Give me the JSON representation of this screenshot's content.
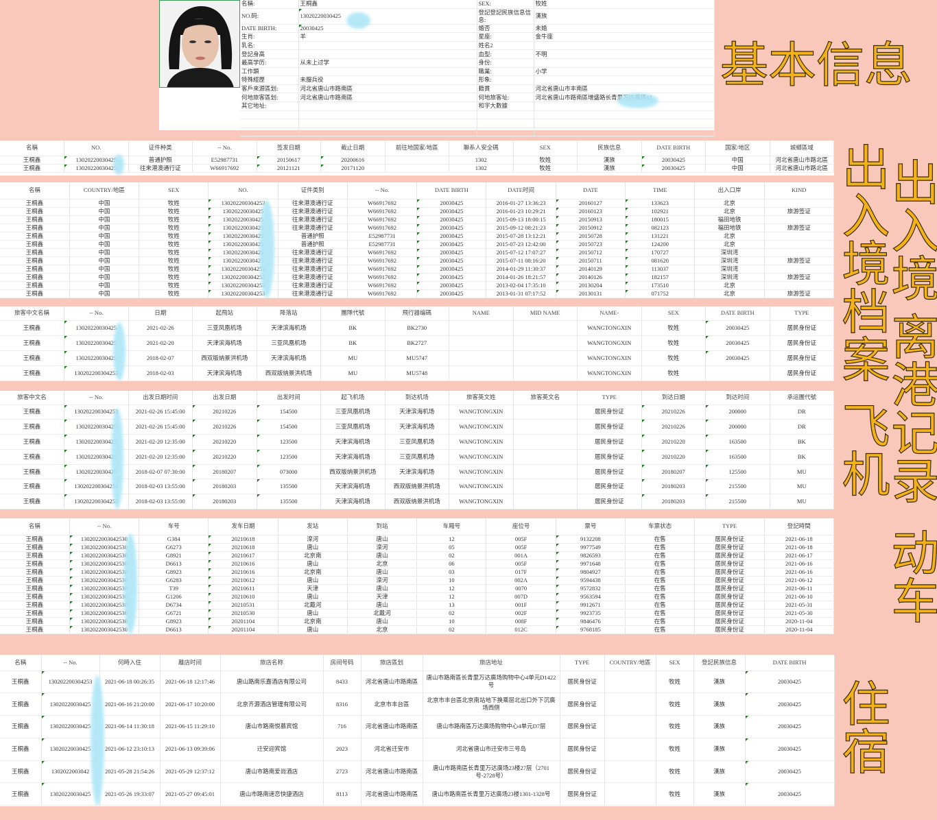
{
  "overlay_labels": {
    "basic": "基本信息",
    "archive": "出入境档案",
    "entry_exit": "出入境",
    "departure": "离港记录",
    "flight": "飞机",
    "train": "动车",
    "hotel": "住宿"
  },
  "colors": {
    "background": "#f9c8bb",
    "overlay_text": "#f3b21a",
    "redaction": "#aee6f7",
    "cell_marker": "#1a7a1a"
  },
  "basic_info": {
    "photo": "portrait-photo",
    "rows": [
      [
        "名稱:",
        "王桐鑫",
        "SEX:",
        "牧姓"
      ],
      [
        "NO.码:",
        "13020220030425",
        "登記登記民族信息信息:",
        "漢族"
      ],
      [
        "DATE BIRTH:",
        "20030425",
        "婚否",
        "未婚"
      ],
      [
        "生肖:",
        "羊",
        "星座:",
        "金牛座"
      ],
      [
        "乳名:",
        "",
        "姓名2",
        ""
      ],
      [
        "登記身高",
        "",
        "血型:",
        "不明"
      ],
      [
        "最高学历:",
        "从未上过学",
        "身份:",
        ""
      ],
      [
        "工作類",
        "",
        "職業:",
        "小学"
      ],
      [
        "特殊經歷",
        "未服兵役",
        "形象:",
        ""
      ],
      [
        "客戶來源區划:",
        "河北省唐山市路南區",
        "籍貫",
        "河北省唐山市丰南區"
      ],
      [
        "何地旅客區划:",
        "河北省唐山市路南區",
        "何地旅客址:",
        "河北省唐山市路南區增盛路长青里万达廣场12"
      ],
      [
        "其它地址:",
        "",
        "和字大數據",
        ""
      ],
      [
        "",
        "",
        "",
        ""
      ],
      [
        "",
        "",
        "",
        ""
      ],
      [
        "",
        "",
        "",
        ""
      ]
    ]
  },
  "archive": {
    "headers": [
      "名稱",
      "NO.",
      "证件种类",
      "-- No.",
      "签发日期",
      "截止日期",
      "前往地国家/地區",
      "聯系人安全碼",
      "SEX",
      "民族信息",
      "DATE BIRTH",
      "国家/地区",
      "城鄉區域"
    ],
    "rows": [
      [
        "王桐鑫",
        "13020220030425",
        "普通护照",
        "E52987731",
        "20150617",
        "20200616",
        "",
        "1302",
        "牧姓",
        "漢族",
        "20030425",
        "中国",
        "河北省唐山市路北區"
      ],
      [
        "王桐鑫",
        "13020220030425",
        "往来港澳通行证",
        "W66917692",
        "20121121",
        "20171120",
        "",
        "1302",
        "牧姓",
        "漢族",
        "20030425",
        "中国",
        "河北省唐山市路北區"
      ]
    ]
  },
  "entry_exit": {
    "headers": [
      "名稱",
      "COUNTRY/地區",
      "SEX",
      "NO.",
      "证件类别",
      "-- No.",
      "DATE BIRTH",
      "DATE时间",
      "DATE",
      "TIME",
      "出入口岸",
      "KIND"
    ],
    "rows": [
      [
        "王桐鑫",
        "中国",
        "牧姓",
        "130202200304253",
        "往来港澳通行证",
        "W66917692",
        "20030425",
        "2016-01-27 13:36:23",
        "20160127",
        "133623",
        "北京",
        ""
      ],
      [
        "王桐鑫",
        "中国",
        "牧姓",
        "13020220030425",
        "往来港澳通行证",
        "W66917692",
        "20030425",
        "2016-01-23 10:29:21",
        "20160123",
        "102921",
        "北京",
        "旅游签证"
      ],
      [
        "王桐鑫",
        "中国",
        "牧姓",
        "13020220030425",
        "往来港澳通行证",
        "W66917692",
        "20030425",
        "2015-09-13 18:00:15",
        "20150913",
        "180015",
        "福田地铁",
        ""
      ],
      [
        "王桐鑫",
        "中国",
        "牧姓",
        "13020220030425",
        "往来港澳通行证",
        "W66917692",
        "20030425",
        "2015-09-12 08:21:23",
        "20150912",
        "082123",
        "福田地铁",
        "旅游签证"
      ],
      [
        "王桐鑫",
        "中国",
        "牧姓",
        "13020220030425",
        "普通护照",
        "E52987731",
        "20030425",
        "2015-07-28 13:12:21",
        "20150728",
        "131221",
        "北京",
        ""
      ],
      [
        "王桐鑫",
        "中国",
        "牧姓",
        "13020220030425",
        "普通护照",
        "E52987731",
        "20030425",
        "2015-07-23 12:42:00",
        "20150723",
        "124200",
        "北京",
        ""
      ],
      [
        "王桐鑫",
        "中国",
        "牧姓",
        "13020220030425",
        "往来港澳通行证",
        "W66917692",
        "20030425",
        "2015-07-12 17:07:27",
        "20150712",
        "170727",
        "深圳湾",
        ""
      ],
      [
        "王桐鑫",
        "中国",
        "牧姓",
        "13020220030425",
        "往来港澳通行证",
        "W66917692",
        "20030425",
        "2015-07-11 08:16:20",
        "20150711",
        "081620",
        "深圳湾",
        "旅游签证"
      ],
      [
        "王桐鑫",
        "中国",
        "牧姓",
        "130202200304253",
        "往来港澳通行证",
        "W66917692",
        "20030425",
        "2014-01-29 11:30:37",
        "20140129",
        "113037",
        "深圳湾",
        ""
      ],
      [
        "王桐鑫",
        "中国",
        "牧姓",
        "130202200304253",
        "往来港澳通行证",
        "W66917692",
        "20030425",
        "2014-01-26 18:21:57",
        "20140126",
        "182157",
        "深圳湾",
        "旅游签证"
      ],
      [
        "王桐鑫",
        "中国",
        "牧姓",
        "130202200304253",
        "往来港澳通行证",
        "W66917692",
        "20030425",
        "2013-02-04 17:35:10",
        "20130204",
        "173510",
        "北京",
        ""
      ],
      [
        "王桐鑫",
        "中国",
        "牧姓",
        "130202200304253",
        "往来港澳通行证",
        "W66917692",
        "20030425",
        "2013-01-31 07:17:52",
        "20130131",
        "071752",
        "北京",
        "旅游签证"
      ]
    ]
  },
  "departure": {
    "headers": [
      "旅客中文名稱",
      "-- No.",
      "日期",
      "起飛站",
      "降落站",
      "團隊代號",
      "飛行器编碼",
      "NAME",
      "MID NAME",
      "NAME-",
      "SEX",
      "DATE BIRTH",
      "TYPE"
    ],
    "rows": [
      [
        "王桐鑫",
        "13020220030425",
        "2021-02-26",
        "三亚凤凰机场",
        "天津滨海机场",
        "BK",
        "BK2730",
        "",
        "",
        "WANGTONGXIN",
        "牧姓",
        "20030425",
        "居民身份证"
      ],
      [
        "王桐鑫",
        "13020220030425",
        "2021-02-20",
        "天津滨海机场",
        "三亚凤凰机场",
        "BK",
        "BK2727",
        "",
        "",
        "WANGTONGXIN",
        "牧姓",
        "20030425",
        "居民身份证"
      ],
      [
        "王桐鑫",
        "13020220030425",
        "2018-02-07",
        "西双版纳景洪机场",
        "天津滨海机场",
        "MU",
        "MU5747",
        "",
        "",
        "WANGTONGXIN",
        "牧姓",
        "20030425",
        "居民身份证"
      ],
      [
        "王桐鑫",
        "130202200304253",
        "2018-02-03",
        "天津滨海机场",
        "西双版纳景洪机场",
        "MU",
        "MU5748",
        "",
        "",
        "WANGTONGXIN",
        "牧姓",
        "",
        "居民身份证"
      ]
    ]
  },
  "flight": {
    "headers": [
      "旅客中文名",
      "-- No.",
      "出发日期时间",
      "出发日期",
      "出发时间",
      "起飞机场",
      "到达机场",
      "旅客英文姓",
      "旅客英文名",
      "TYPE",
      "到达日期",
      "到达时间",
      "承运團代號"
    ],
    "rows": [
      [
        "王桐鑫",
        "130202200304253",
        "2021-02-26 15:45:00",
        "20210226",
        "154500",
        "三亚凤凰机场",
        "天津滨海机场",
        "WANGTONGXIN",
        "",
        "居民身份证",
        "20210226",
        "200000",
        "DR"
      ],
      [
        "王桐鑫",
        "13020220030425",
        "2021-02-26 15:45:00",
        "20210226",
        "154500",
        "三亚凤凰机场",
        "天津滨海机场",
        "WANGTONGXIN",
        "",
        "居民身份证",
        "20210226",
        "200000",
        "DR"
      ],
      [
        "王桐鑫",
        "13020220030425",
        "2021-02-20 12:35:00",
        "20210220",
        "123500",
        "天津滨海机场",
        "三亚凤凰机场",
        "WANGTONGXIN",
        "",
        "居民身份证",
        "20210220",
        "163500",
        "BK"
      ],
      [
        "王桐鑫",
        "13020220030425",
        "2021-02-20 12:35:00",
        "20210220",
        "123500",
        "天津滨海机场",
        "三亚凤凰机场",
        "WANGTONGXIN",
        "",
        "居民身份证",
        "20210220",
        "163500",
        "BK"
      ],
      [
        "王桐鑫",
        "13020220030425",
        "2018-02-07 07:30:00",
        "20180207",
        "073000",
        "西双版纳景洪机场",
        "天津滨海机场",
        "WANGTONGXIN",
        "",
        "居民身份证",
        "20180207",
        "125500",
        "MU"
      ],
      [
        "王桐鑫",
        "130202200304253",
        "2018-02-03 13:55:00",
        "20180203",
        "135500",
        "天津滨海机场",
        "西双版纳景洪机场",
        "WANGTONGXIN",
        "",
        "居民身份证",
        "20180203",
        "215500",
        "MU"
      ],
      [
        "王桐鑫",
        "130202200304253",
        "2018-02-03 13:55:00",
        "20180203",
        "135500",
        "天津滨海机场",
        "西双版纳景洪机场",
        "WANGTONGXIN",
        "",
        "居民身份证",
        "20180203",
        "215500",
        "MU"
      ]
    ]
  },
  "train": {
    "headers": [
      "名稱",
      "-- No.",
      "车号",
      "发车日期",
      "发站",
      "到站",
      "车厢号",
      "座位号",
      "票号",
      "车票状态",
      "TYPE",
      "登記時間"
    ],
    "rows": [
      [
        "王桐鑫",
        "1302022003042530",
        "G384",
        "20210618",
        "滦河",
        "唐山",
        "12",
        "005F",
        "9132208",
        "在售",
        "居民身份证",
        "2021-06-18"
      ],
      [
        "王桐鑫",
        "1302022003042530",
        "G6273",
        "20210618",
        "唐山",
        "滦河",
        "05",
        "005F",
        "9977549",
        "在售",
        "居民身份证",
        "2021-06-18"
      ],
      [
        "王桐鑫",
        "1302022003042530",
        "G8921",
        "20210617",
        "北京南",
        "唐山",
        "02",
        "001A",
        "9826593",
        "在售",
        "居民身份证",
        "2021-06-17"
      ],
      [
        "王桐鑫",
        "1302022003042530",
        "D6613",
        "20210616",
        "唐山",
        "北京",
        "06",
        "005F",
        "9971648",
        "在售",
        "居民身份证",
        "2021-06-16"
      ],
      [
        "王桐鑫",
        "1302022003042530",
        "G8923",
        "20210616",
        "北京南",
        "唐山",
        "03",
        "017F",
        "9804927",
        "在售",
        "居民身份证",
        "2021-06-16"
      ],
      [
        "王桐鑫",
        "1302022003042530",
        "G6283",
        "20210612",
        "唐山",
        "滦河",
        "10",
        "002A",
        "9594438",
        "在售",
        "居民身份证",
        "2021-06-12"
      ],
      [
        "王桐鑫",
        "1302022003042530",
        "T39",
        "20210611",
        "天津",
        "唐山",
        "12",
        "0070",
        "9572832",
        "在售",
        "居民身份证",
        "2021-06-11"
      ],
      [
        "王桐鑫",
        "1302022003042530",
        "G1206",
        "20210610",
        "唐山",
        "天津",
        "12",
        "007D",
        "9563594",
        "在售",
        "居民身份证",
        "2021-06-10"
      ],
      [
        "王桐鑫",
        "1302022003042530",
        "D6734",
        "20210531",
        "北戴河",
        "唐山",
        "13",
        "001F",
        "9912671",
        "在售",
        "居民身份证",
        "2021-05-31"
      ],
      [
        "王桐鑫",
        "1302022003042530",
        "G6721",
        "20210530",
        "唐山",
        "北戴河",
        "02",
        "002F",
        "9923735",
        "在售",
        "居民身份证",
        "2021-05-30"
      ],
      [
        "王桐鑫",
        "1302022003042530",
        "G8923",
        "20201104",
        "北京南",
        "唐山",
        "10",
        "008F",
        "9846476",
        "在售",
        "居民身份证",
        "2020-11-04"
      ],
      [
        "王桐鑫",
        "1302022003042530",
        "D6613",
        "20201104",
        "唐山",
        "北京",
        "02",
        "012C",
        "9768185",
        "在售",
        "居民身份证",
        "2020-11-04"
      ]
    ]
  },
  "hotel": {
    "headers": [
      "名稱",
      "-- No.",
      "何時入住",
      "離店时间",
      "旅店名称",
      "房间号码",
      "旅店區划",
      "旅店地址",
      "TYPE",
      "COUNTRY/地區",
      "SEX",
      "登記民族信息",
      "DATE BIRTH"
    ],
    "rows": [
      [
        "王桐鑫",
        "130202200304253",
        "2021-06-18 00:26:35",
        "2021-06-18 12:17:46",
        "唐山路南乐嘉酒店有限公司",
        "8433",
        "河北省唐山市路南區",
        "唐山市路南區长青里万达廣场购物中心4单元D1422号",
        "居民身份证",
        "",
        "牧姓",
        "漢族",
        "20030425"
      ],
      [
        "王桐鑫",
        "13020220030425",
        "2021-06-16 21:20:00",
        "2021-06-17 10:20:00",
        "北京齐源酒店管理有限公司",
        "8316",
        "北京市丰台區",
        "北京市丰台區北京南站地下换乘层北出口外下沉廣场西侧",
        "居民身份证",
        "",
        "牧姓",
        "漢族",
        "20030425"
      ],
      [
        "王桐鑫",
        "13020220030425",
        "2021-06-14 11:30:18",
        "2021-06-15 11:29:10",
        "唐山市路南悦慕宾馆",
        "716",
        "河北省唐山市路南區",
        "唐山市路南區万达廣场购物中心4单元D7层",
        "居民身份证",
        "",
        "牧姓",
        "漢族",
        "20030425"
      ],
      [
        "王桐鑫",
        "13020220030425",
        "2021-06-12 23:10:13",
        "2021-06-13 09:39:06",
        "迁安迎宾馆",
        "2023",
        "河北省迁安市",
        "河北省唐山市迁安市三号岛",
        "居民身份证",
        "",
        "牧姓",
        "漢族",
        "20030425"
      ],
      [
        "王桐鑫",
        "1302022003042",
        "2021-05-28 21:54:26",
        "2021-05-29 12:37:12",
        "唐山市路南爱尚酒店",
        "2723",
        "河北省唐山市路南區",
        "唐山市路南區长青里万达廣场23楼27层（2701号-2728号）",
        "居民身份证",
        "",
        "牧姓",
        "漢族",
        "20030425"
      ],
      [
        "王桐鑫",
        "13020220030425",
        "2021-05-26 19:33:07",
        "2021-05-27 09:45:01",
        "唐山市路南速恋快捷酒店",
        "8113",
        "河北省唐山市路南區",
        "唐山市路南區长青里万达廣场23楼1301-1328号",
        "居民身份证",
        "",
        "牧姓",
        "漢族",
        "20030425"
      ]
    ]
  }
}
